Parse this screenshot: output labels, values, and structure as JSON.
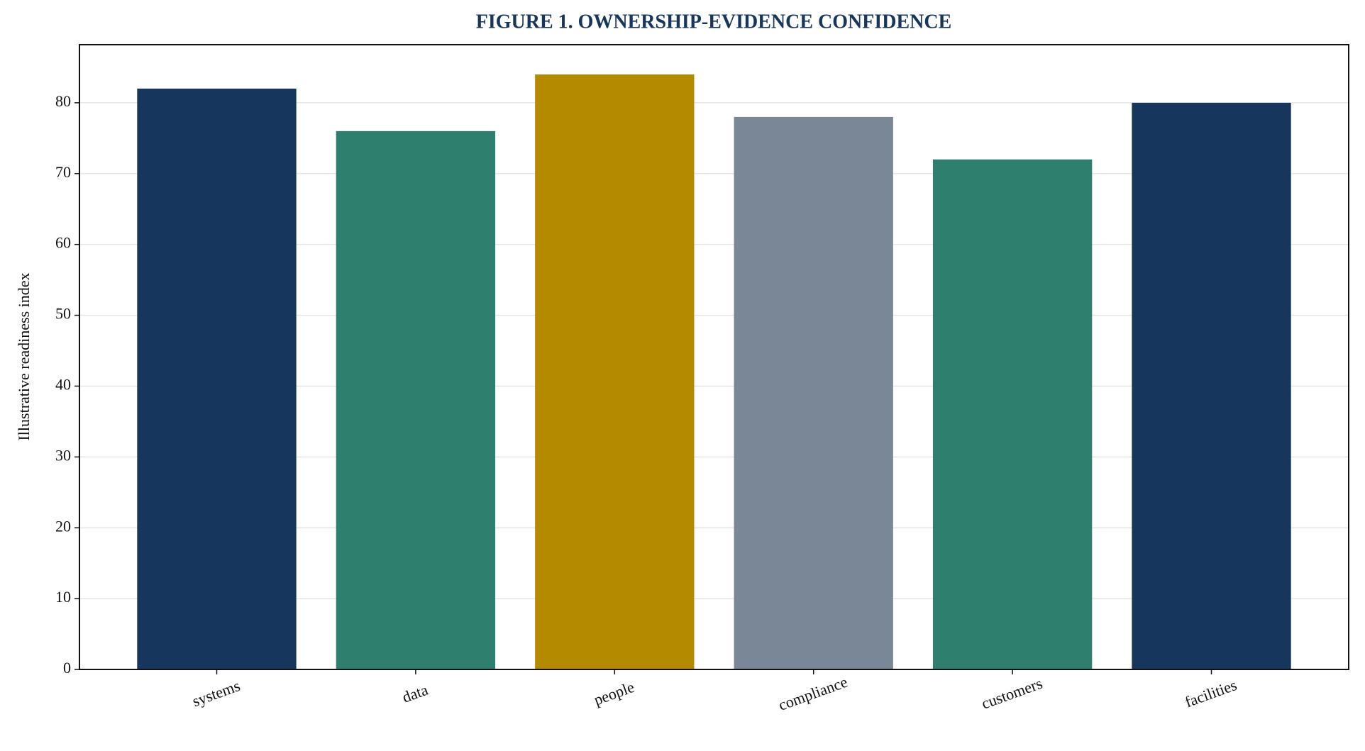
{
  "chart_data": {
    "type": "bar",
    "title": "FIGURE 1. OWNERSHIP-EVIDENCE CONFIDENCE",
    "y_label": "Illustrative readiness index",
    "categories": [
      "systems",
      "data",
      "people",
      "compliance",
      "customers",
      "facilities"
    ],
    "values": [
      82,
      76,
      84,
      78,
      72,
      80
    ],
    "colors": [
      "#17365d",
      "#2e7f6e",
      "#b38a00",
      "#7a8796",
      "#2e7f6e",
      "#17365d"
    ],
    "ylim": [
      0,
      88.2
    ],
    "yticks": [
      0,
      10,
      20,
      30,
      40,
      50,
      60,
      70,
      80
    ],
    "grid": true
  }
}
